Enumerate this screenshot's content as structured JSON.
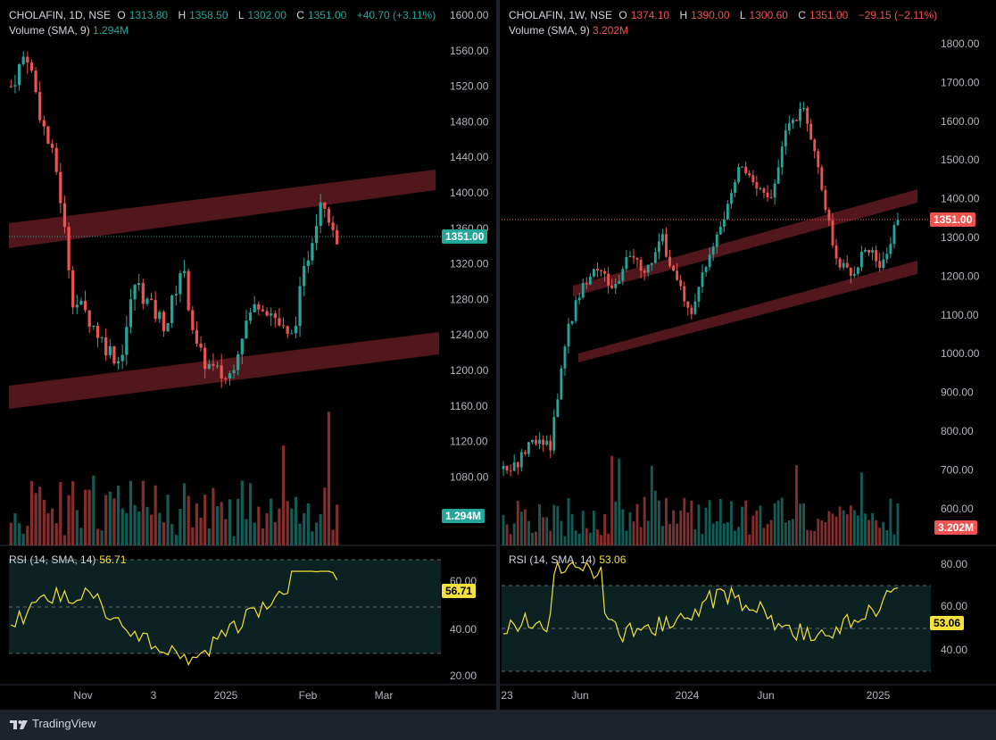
{
  "left": {
    "symbol": "CHOLAFIN, 1D, NSE",
    "O_label": "O",
    "O": "1313.80",
    "H_label": "H",
    "H": "1358.50",
    "L_label": "L",
    "L": "1302.00",
    "C_label": "C",
    "C": "1351.00",
    "change": "+40.70 (+3.11%)",
    "volume_label": "Volume (SMA, 9)",
    "volume_value": "1.294M",
    "price_tag": "1351.00",
    "volume_tag": "1.294M",
    "rsi_label": "RSI (14, SMA, 14)",
    "rsi_value": "56.71",
    "rsi_tag": "56.71",
    "y_ticks": [
      "1600.00",
      "1560.00",
      "1520.00",
      "1480.00",
      "1440.00",
      "1400.00",
      "1360.00",
      "1320.00",
      "1280.00",
      "1240.00",
      "1200.00",
      "1160.00",
      "1120.00",
      "1080.00"
    ],
    "rsi_ticks": [
      "60.00",
      "40.00",
      "20.00"
    ],
    "x_ticks": [
      "Nov",
      "3",
      "2025",
      "Feb",
      "Mar"
    ]
  },
  "right": {
    "symbol": "CHOLAFIN, 1W, NSE",
    "O_label": "O",
    "O": "1374.10",
    "H_label": "H",
    "H": "1390.00",
    "L_label": "L",
    "L": "1300.60",
    "C_label": "C",
    "C": "1351.00",
    "change": "−29.15 (−2.11%)",
    "volume_label": "Volume (SMA, 9)",
    "volume_value": "3.202M",
    "price_tag": "1351.00",
    "volume_tag": "3.202M",
    "rsi_label": "RSI (14, SMA, 14)",
    "rsi_value": "53.06",
    "rsi_tag": "53.06",
    "y_ticks": [
      "1800.00",
      "1700.00",
      "1600.00",
      "1500.00",
      "1400.00",
      "1300.00",
      "1200.00",
      "1100.00",
      "1000.00",
      "900.00",
      "800.00",
      "700.00",
      "600.00"
    ],
    "rsi_ticks": [
      "80.00",
      "60.00",
      "40.00"
    ],
    "x_ticks": [
      "23",
      "Jun",
      "2024",
      "Jun",
      "2025"
    ]
  },
  "footer": {
    "brand": "TradingView",
    "logo_icon": "tradingview-logo-icon"
  },
  "colors": {
    "up": "#26a69a",
    "down": "#ef5350",
    "channel": "#5b1a1f",
    "rsi": "#f5e13b",
    "rsi_band": "#0c2222"
  }
}
